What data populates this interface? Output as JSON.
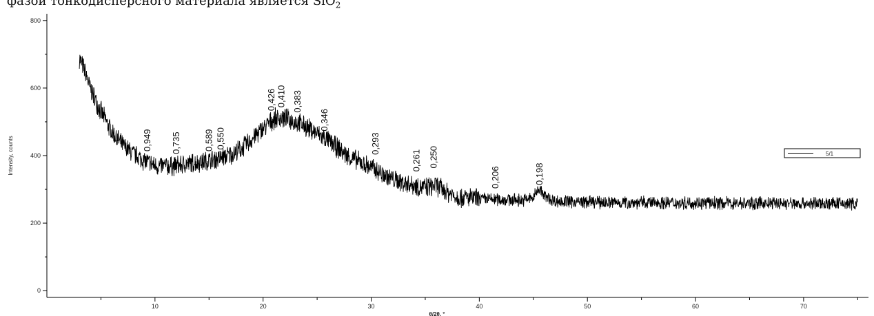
{
  "header": {
    "text": "фазой тонкодисперсного материала является SiO",
    "subscript": "2"
  },
  "chart_data": {
    "type": "line",
    "xlabel": "θ/2θ, °",
    "ylabel": "Intensity, counts",
    "xlim": [
      0,
      76
    ],
    "ylim": [
      -20,
      820
    ],
    "x_ticks": [
      10,
      20,
      30,
      40,
      50,
      60,
      70
    ],
    "y_ticks": [
      0,
      200,
      400,
      600,
      800
    ],
    "x_tick_labels": [
      "10",
      "20",
      "30",
      "40",
      "50",
      "60",
      "70"
    ],
    "y_tick_labels": [
      "0",
      "200",
      "400",
      "600",
      "800"
    ],
    "legend": {
      "placement": "right",
      "entries": [
        "5/1"
      ]
    },
    "series": [
      {
        "name": "5/1",
        "color": "#000000",
        "envelope": {
          "x": [
            3,
            3.5,
            4,
            5,
            6,
            7,
            8,
            9,
            10,
            11,
            12,
            13,
            14,
            15,
            16,
            17,
            18,
            19,
            20,
            21,
            21.5,
            22,
            23,
            24,
            25,
            26,
            27,
            28,
            29,
            30,
            31,
            32,
            33,
            34,
            35,
            36,
            37,
            38,
            40,
            42,
            44,
            45,
            45.5,
            46,
            47,
            50,
            55,
            60,
            65,
            70,
            75
          ],
          "y": [
            690,
            650,
            600,
            530,
            470,
            430,
            405,
            385,
            370,
            368,
            370,
            375,
            380,
            385,
            392,
            402,
            420,
            450,
            480,
            508,
            512,
            510,
            500,
            485,
            465,
            445,
            420,
            395,
            380,
            365,
            345,
            330,
            320,
            312,
            305,
            312,
            292,
            278,
            272,
            270,
            268,
            275,
            305,
            280,
            265,
            262,
            261,
            260,
            259,
            258,
            258
          ]
        }
      }
    ],
    "annotations": [
      {
        "x": 9.3,
        "y": 400,
        "text": "0,949"
      },
      {
        "x": 12.0,
        "y": 392,
        "text": "0,735"
      },
      {
        "x": 15.0,
        "y": 400,
        "text": "0,589"
      },
      {
        "x": 16.1,
        "y": 405,
        "text": "0,550"
      },
      {
        "x": 20.8,
        "y": 520,
        "text": "0,426"
      },
      {
        "x": 21.7,
        "y": 530,
        "text": "0,410"
      },
      {
        "x": 23.2,
        "y": 515,
        "text": "0,383"
      },
      {
        "x": 25.7,
        "y": 460,
        "text": "0,346"
      },
      {
        "x": 30.4,
        "y": 390,
        "text": "0,293"
      },
      {
        "x": 34.2,
        "y": 340,
        "text": "0,261"
      },
      {
        "x": 35.8,
        "y": 350,
        "text": "0,250"
      },
      {
        "x": 41.5,
        "y": 290,
        "text": "0,206"
      },
      {
        "x": 45.6,
        "y": 300,
        "text": "0,198"
      }
    ]
  }
}
